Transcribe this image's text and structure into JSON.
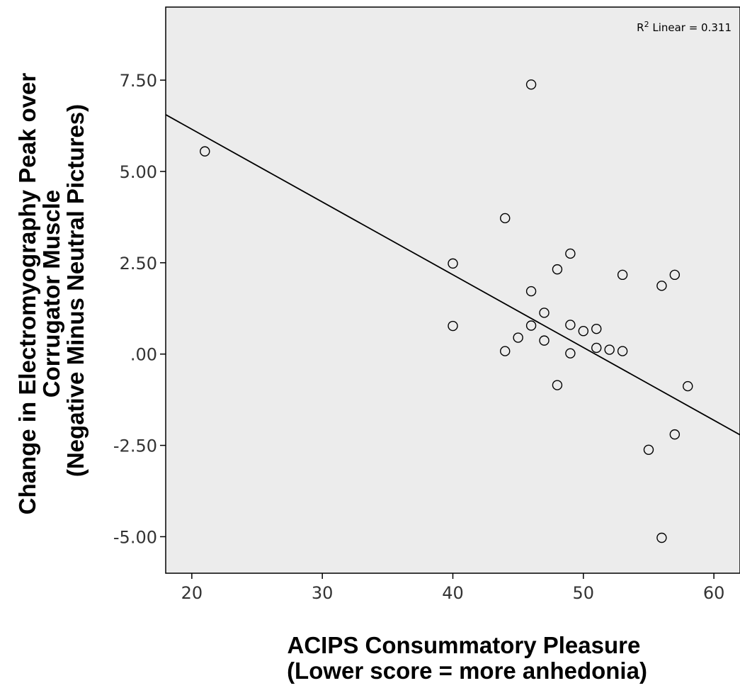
{
  "chart_data": {
    "type": "scatter",
    "title": "",
    "xlabel_lines": [
      "ACIPS Consummatory Pleasure",
      "(Lower score = more anhedonia)"
    ],
    "ylabel_lines": [
      "Change in Electromyography Peak over",
      "Corrugator Muscle",
      "(Negative Minus Neutral Pictures)"
    ],
    "xlim": [
      18,
      62
    ],
    "ylim": [
      -6,
      9.5
    ],
    "x_ticks": [
      20,
      30,
      40,
      50,
      60
    ],
    "x_tick_labels": [
      "20",
      "30",
      "40",
      "50",
      "60"
    ],
    "y_ticks": [
      -5,
      -2.5,
      0,
      2.5,
      5,
      7.5
    ],
    "y_tick_labels": [
      "-5.00",
      "-2.50",
      ".00",
      "2.50",
      "5.00",
      "7.50"
    ],
    "grid": false,
    "background": "#ececec",
    "annotation": {
      "prefix": "R",
      "superscript": "2",
      "text": " Linear = 0.311"
    },
    "fit_line": {
      "slope": -0.1992,
      "intercept": 10.14
    },
    "series": [
      {
        "marker": "open-circle",
        "points": [
          [
            21,
            5.55
          ],
          [
            40,
            2.48
          ],
          [
            40,
            0.77
          ],
          [
            44,
            3.72
          ],
          [
            44,
            0.08
          ],
          [
            45,
            0.45
          ],
          [
            46,
            7.38
          ],
          [
            46,
            1.72
          ],
          [
            46,
            0.78
          ],
          [
            47,
            1.13
          ],
          [
            47,
            0.37
          ],
          [
            48,
            2.32
          ],
          [
            48,
            -0.85
          ],
          [
            49,
            2.75
          ],
          [
            49,
            0.8
          ],
          [
            49,
            0.02
          ],
          [
            50,
            0.63
          ],
          [
            51,
            0.69
          ],
          [
            51,
            0.17
          ],
          [
            52,
            0.12
          ],
          [
            53,
            2.17
          ],
          [
            53,
            0.08
          ],
          [
            55,
            -2.62
          ],
          [
            56,
            1.87
          ],
          [
            56,
            -5.03
          ],
          [
            57,
            2.17
          ],
          [
            57,
            -2.2
          ],
          [
            58,
            -0.88
          ]
        ]
      }
    ]
  }
}
